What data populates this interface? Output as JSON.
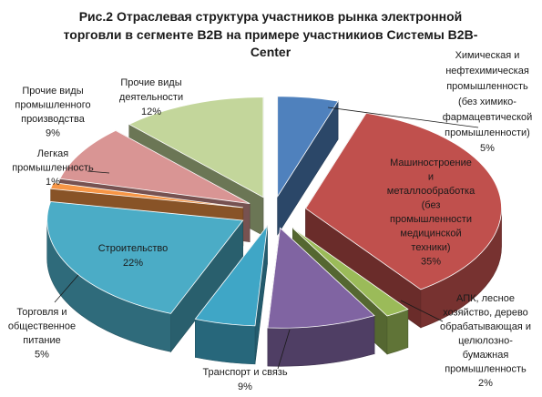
{
  "chart_data": {
    "type": "pie",
    "title_lines": [
      "Рис.2 Отраслевая структура участников рынка электронной",
      "торговли в сегменте B2B на примере участникиов Системы B2B-",
      "Center"
    ],
    "slices": [
      {
        "label_lines": [
          "Химическая и",
          "нефтехимическая",
          "промышленность",
          "(без химико-",
          "фармацевтической",
          "промышленности)"
        ],
        "value": 5,
        "value_text": "5%",
        "color": "#4f81bd"
      },
      {
        "label_lines": [
          "Машиностроение",
          "и",
          "металлообработка",
          "(без",
          "промышленности",
          "медицинской",
          "техники)"
        ],
        "value": 35,
        "value_text": "35%",
        "color": "#c0504d"
      },
      {
        "label_lines": [
          "АПК, лесное",
          "хозяйство, дерево",
          "обрабатывающая и",
          "целюлозно-",
          "бумажная",
          "промышленность"
        ],
        "value": 2,
        "value_text": "2%",
        "color": "#9bbb59"
      },
      {
        "label_lines": [
          "Транспорт и связь"
        ],
        "value": 9,
        "value_text": "9%",
        "color": "#8064a2"
      },
      {
        "label_lines": [
          "Торговля и",
          "общественное",
          "питание"
        ],
        "value": 5,
        "value_text": "5%",
        "color": "#3fa6c6"
      },
      {
        "label_lines": [
          "Строительство"
        ],
        "value": 22,
        "value_text": "22%",
        "color": "#4bacc6"
      },
      {
        "label_lines": [
          "Легкая",
          "промышленность"
        ],
        "value": 1,
        "value_text": "1%",
        "color": "#f79646"
      },
      {
        "label_lines": [
          "Прочие виды",
          "промышленного",
          "производства"
        ],
        "value": 9,
        "value_text": "9%",
        "color": "#d99594"
      },
      {
        "label_lines": [
          "Прочие виды",
          "деятельности"
        ],
        "value": 12,
        "value_text": "12%",
        "color": "#c3d69b"
      }
    ]
  }
}
